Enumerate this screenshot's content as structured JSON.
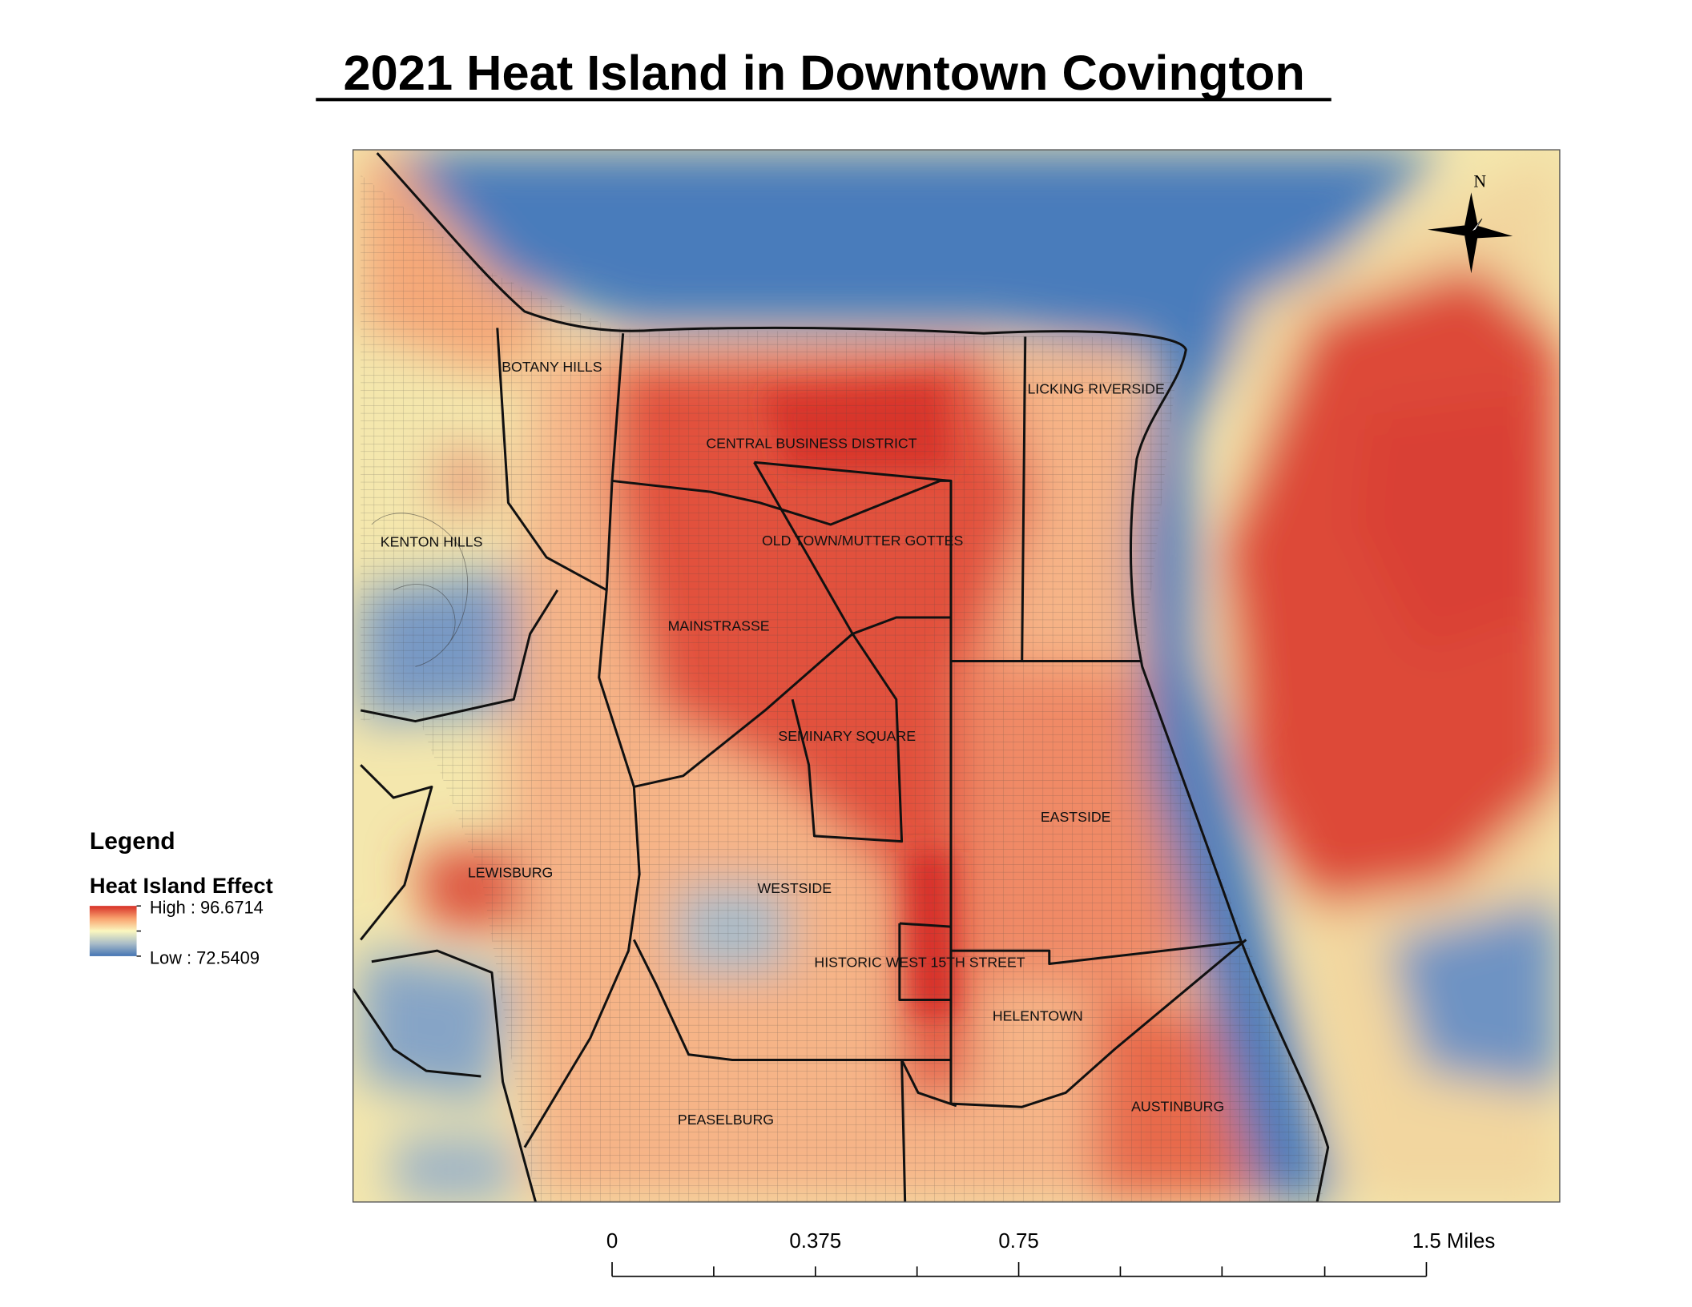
{
  "title": "2021 Heat Island in Downtown Covington",
  "legend": {
    "heading": "Legend",
    "layer": "Heat Island Effect",
    "high_label": "High : 96.6714",
    "low_label": "Low : 72.5409",
    "high_value": 96.6714,
    "low_value": 72.5409,
    "colors": {
      "high": "#d73027",
      "mid": "#ffffbf",
      "low": "#4575b4"
    }
  },
  "north_arrow": {
    "label": "N"
  },
  "scale_bar": {
    "ticks": [
      "0",
      "0.375",
      "0.75",
      "1.5 Miles"
    ]
  },
  "neighborhoods": [
    "BOTANY HILLS",
    "LICKING RIVERSIDE",
    "CENTRAL BUSINESS DISTRICT",
    "KENTON HILLS",
    "OLD TOWN/MUTTER GOTTES",
    "MAINSTRASSE",
    "SEMINARY SQUARE",
    "EASTSIDE",
    "LEWISBURG",
    "WESTSIDE",
    "HISTORIC WEST 15TH STREET",
    "HELENTOWN",
    "AUSTINBURG",
    "PEASELBURG"
  ]
}
